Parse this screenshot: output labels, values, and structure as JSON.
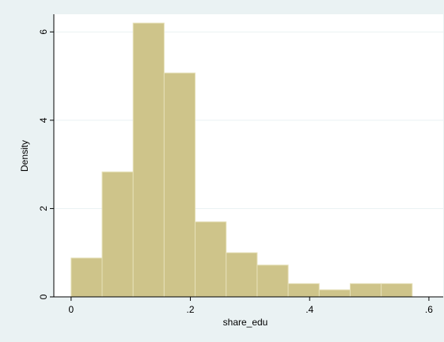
{
  "chart_data": {
    "type": "histogram",
    "x_label": "share_edu",
    "y_label": "Density",
    "bins": [
      0,
      0.052,
      0.104,
      0.156,
      0.208,
      0.26,
      0.312,
      0.364,
      0.416,
      0.468,
      0.52,
      0.572
    ],
    "values": [
      0.88,
      2.83,
      6.2,
      5.07,
      1.7,
      1.0,
      0.72,
      0.3,
      0.16,
      0.3,
      0.3
    ],
    "color": "#cec48a",
    "xlim": [
      -0.029,
      0.624
    ],
    "ylim": [
      0,
      6.4
    ],
    "xticks": [
      0,
      {
        "value": 0.2,
        "label": ".2"
      },
      {
        "value": 0.4,
        "label": ".4"
      },
      {
        "value": 0.6,
        "label": ".6"
      }
    ],
    "yticks": [
      0,
      2,
      4,
      6
    ],
    "grid": true
  }
}
